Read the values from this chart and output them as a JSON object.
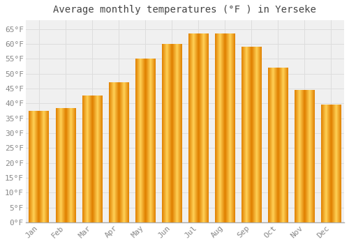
{
  "title": "Average monthly temperatures (°F ) in Yerseke",
  "months": [
    "Jan",
    "Feb",
    "Mar",
    "Apr",
    "May",
    "Jun",
    "Jul",
    "Aug",
    "Sep",
    "Oct",
    "Nov",
    "Dec"
  ],
  "values": [
    37.5,
    38.3,
    42.5,
    47.0,
    55.0,
    60.0,
    63.5,
    63.5,
    59.0,
    52.0,
    44.5,
    39.5
  ],
  "bar_color_light": "#FFD966",
  "bar_color_main": "#FFAA00",
  "bar_color_dark": "#E08000",
  "background_color": "#FFFFFF",
  "plot_bg_color": "#F0F0F0",
  "grid_color": "#DDDDDD",
  "ylim": [
    0,
    68
  ],
  "yticks": [
    0,
    5,
    10,
    15,
    20,
    25,
    30,
    35,
    40,
    45,
    50,
    55,
    60,
    65
  ],
  "title_fontsize": 10,
  "tick_fontsize": 8,
  "font_family": "monospace"
}
